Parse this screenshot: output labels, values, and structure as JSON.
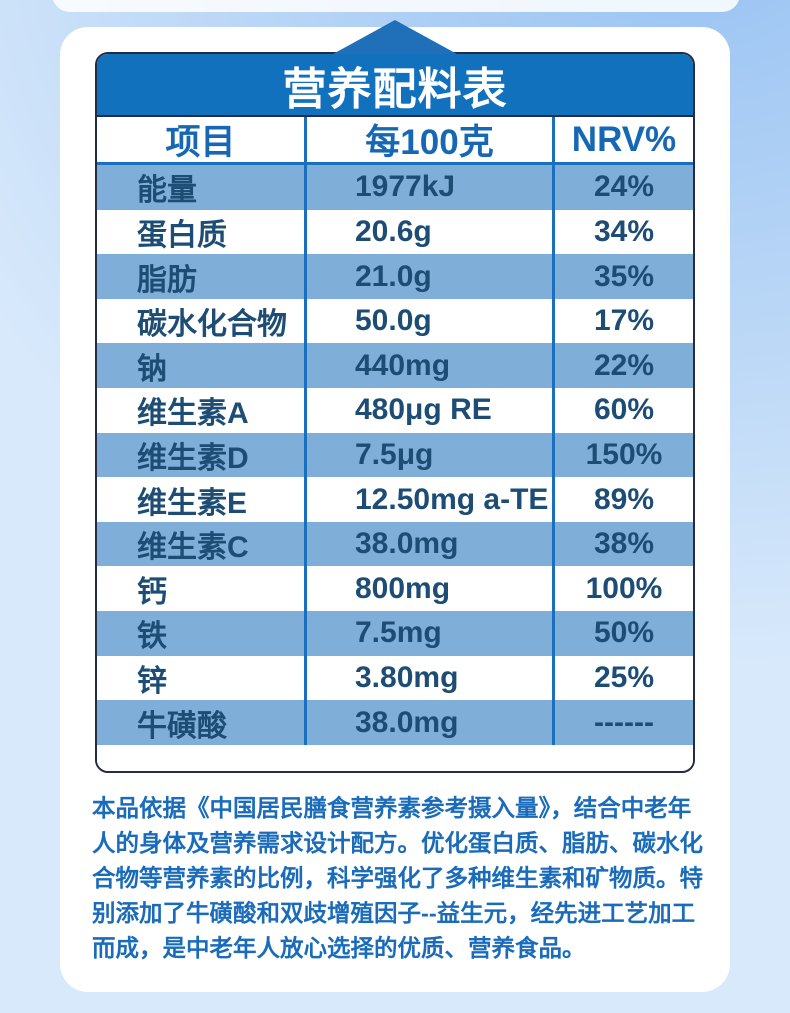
{
  "table": {
    "title": "营养配料表",
    "columns": [
      "项目",
      "每100克",
      "NRV%"
    ],
    "rows": [
      {
        "item": "能量",
        "per100g": "1977kJ",
        "nrv": "24%"
      },
      {
        "item": "蛋白质",
        "per100g": "20.6g",
        "nrv": "34%"
      },
      {
        "item": "脂肪",
        "per100g": "21.0g",
        "nrv": "35%"
      },
      {
        "item": "碳水化合物",
        "per100g": "50.0g",
        "nrv": "17%"
      },
      {
        "item": "钠",
        "per100g": "440mg",
        "nrv": "22%"
      },
      {
        "item": "维生素A",
        "per100g": "480μg RE",
        "nrv": "60%"
      },
      {
        "item": "维生素D",
        "per100g": "7.5μg",
        "nrv": "150%"
      },
      {
        "item": "维生素E",
        "per100g": "12.50mg a-TE",
        "nrv": "89%"
      },
      {
        "item": "维生素C",
        "per100g": "38.0mg",
        "nrv": "38%"
      },
      {
        "item": "钙",
        "per100g": "800mg",
        "nrv": "100%"
      },
      {
        "item": "铁",
        "per100g": "7.5mg",
        "nrv": "50%"
      },
      {
        "item": "锌",
        "per100g": "3.80mg",
        "nrv": "25%"
      },
      {
        "item": "牛磺酸",
        "per100g": "38.0mg",
        "nrv": "------"
      }
    ]
  },
  "footer": {
    "lines": [
      "本品依据《中国居民膳食营养素参考摄入量》，结合中老年",
      "人的身体及营养需求设计配方。优化蛋白质、脂肪、碳水化",
      "合物等营养素的比例，科学强化了多种维生素和矿物质。特",
      "别添加了牛磺酸和双歧增殖因子--益生元，经先进工艺加工",
      "而成，是中老年人放心选择的优质、营养食品。"
    ]
  },
  "icons": {
    "arrow_up": "arrow-up"
  },
  "colors": {
    "bg_far": "#d8e9fb",
    "bg_near": "#94c0f2",
    "header_blue": "#1271bc",
    "arrow_blue": "#1f70b9",
    "row_blue": "#7fafd8",
    "sep_blue": "#1b6fbf",
    "head_text": "#1668b5",
    "cell_text": "#1d4c74",
    "border_dark": "#232c47",
    "para_blue": "#1a6cbb"
  }
}
